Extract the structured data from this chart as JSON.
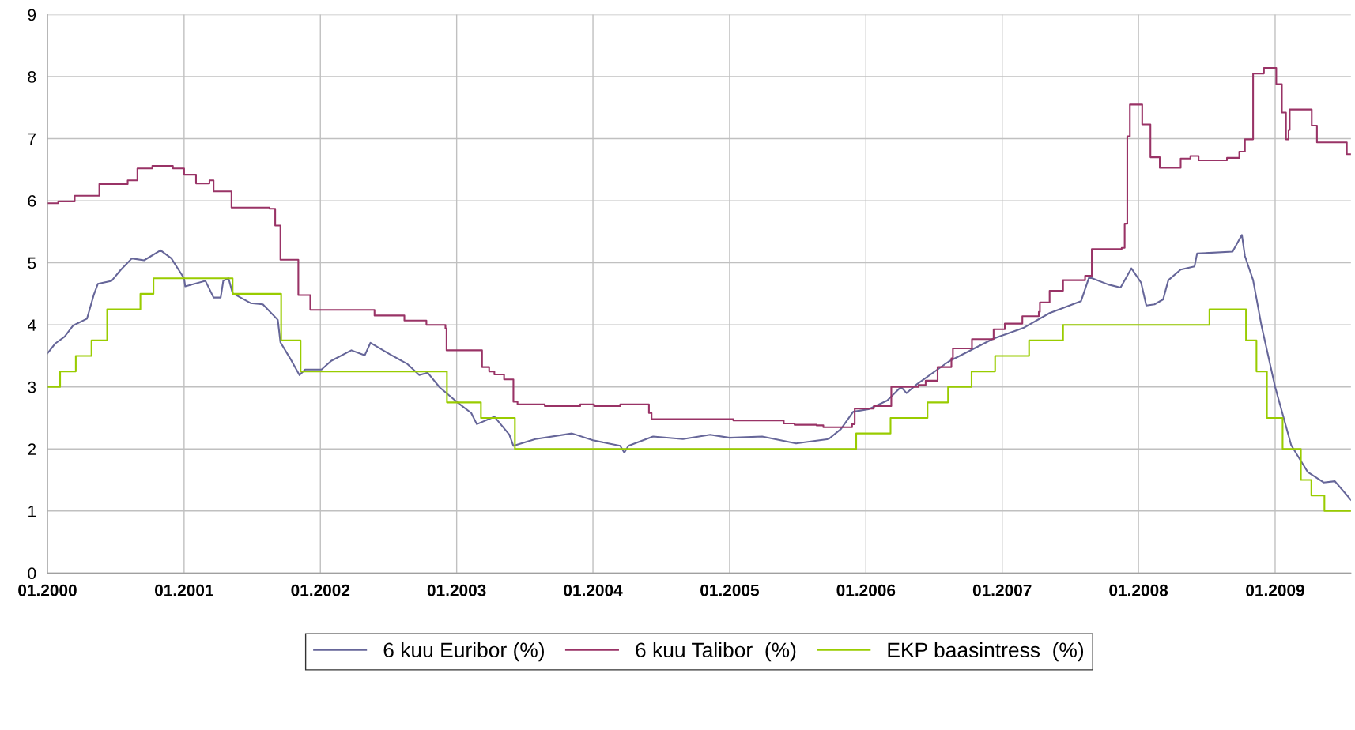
{
  "chart_data": {
    "type": "line",
    "xlim": [
      "2000-01-01",
      "2009-07-23"
    ],
    "ylim": [
      0,
      9
    ],
    "xticks": [
      {
        "value": "2000-01",
        "label": "01.2000"
      },
      {
        "value": "2001-01",
        "label": "01.2001"
      },
      {
        "value": "2002-01",
        "label": "01.2002"
      },
      {
        "value": "2003-01",
        "label": "01.2003"
      },
      {
        "value": "2004-01",
        "label": "01.2004"
      },
      {
        "value": "2005-01",
        "label": "01.2005"
      },
      {
        "value": "2006-01",
        "label": "01.2006"
      },
      {
        "value": "2007-01",
        "label": "01.2007"
      },
      {
        "value": "2008-01",
        "label": "01.2008"
      },
      {
        "value": "2009-01",
        "label": "01.2009"
      }
    ],
    "yticks": [
      0,
      1,
      2,
      3,
      4,
      5,
      6,
      7,
      8,
      9
    ],
    "grid": true,
    "legend": "bottom",
    "series": [
      {
        "name": "6 kuu Euribor (%)",
        "color": "#666699",
        "x": [
          "2000-01-01",
          "2000-01-22",
          "2000-02-16",
          "2000-03-10",
          "2000-04-16",
          "2000-05-04",
          "2000-05-15",
          "2000-06-21",
          "2000-07-16",
          "2000-08-14",
          "2000-09-16",
          "2000-10-30",
          "2000-11-28",
          "2001-01-01",
          "2001-01-04",
          "2001-02-27",
          "2001-03-21",
          "2001-04-09",
          "2001-04-16",
          "2001-04-30",
          "2001-05-11",
          "2001-06-28",
          "2001-07-31",
          "2001-09-09",
          "2001-09-16",
          "2001-10-12",
          "2001-11-06",
          "2001-11-21",
          "2002-01-04",
          "2002-01-30",
          "2002-03-25",
          "2002-04-30",
          "2002-05-15",
          "2002-07-05",
          "2002-08-22",
          "2002-09-23",
          "2002-10-15",
          "2002-11-17",
          "2003-01-01",
          "2003-02-09",
          "2003-02-24",
          "2003-04-12",
          "2003-05-22",
          "2003-06-02",
          "2003-07-31",
          "2003-11-06",
          "2004-01-01",
          "2004-03-14",
          "2004-03-25",
          "2004-04-05",
          "2004-06-10",
          "2004-08-29",
          "2004-11-10",
          "2005-01-01",
          "2005-03-29",
          "2005-06-28",
          "2005-09-23",
          "2005-10-26",
          "2005-11-28",
          "2006-01-08",
          "2006-02-27",
          "2006-04-05",
          "2006-04-20",
          "2006-05-19",
          "2006-08-11",
          "2006-12-09",
          "2007-02-27",
          "2007-05-08",
          "2007-07-31",
          "2007-08-22",
          "2007-10-12",
          "2007-11-14",
          "2007-12-13",
          "2008-01-08",
          "2008-01-22",
          "2008-02-13",
          "2008-03-07",
          "2008-03-21",
          "2008-04-23",
          "2008-05-30",
          "2008-06-06",
          "2008-09-09",
          "2008-10-04",
          "2008-10-12",
          "2008-11-03",
          "2008-11-25",
          "2009-01-01",
          "2009-02-13",
          "2009-03-29",
          "2009-05-11",
          "2009-06-10",
          "2009-07-23"
        ],
        "values": [
          3.54,
          3.7,
          3.81,
          3.99,
          4.1,
          4.48,
          4.66,
          4.71,
          4.89,
          5.07,
          5.04,
          5.2,
          5.07,
          4.75,
          4.62,
          4.71,
          4.44,
          4.44,
          4.71,
          4.75,
          4.51,
          4.35,
          4.33,
          4.08,
          3.72,
          3.46,
          3.19,
          3.28,
          3.28,
          3.42,
          3.59,
          3.51,
          3.71,
          3.53,
          3.37,
          3.19,
          3.23,
          2.99,
          2.76,
          2.58,
          2.4,
          2.52,
          2.23,
          2.05,
          2.16,
          2.25,
          2.14,
          2.05,
          1.94,
          2.05,
          2.2,
          2.16,
          2.23,
          2.18,
          2.2,
          2.09,
          2.16,
          2.32,
          2.6,
          2.64,
          2.78,
          3.0,
          2.9,
          3.05,
          3.41,
          3.78,
          3.95,
          4.19,
          4.38,
          4.77,
          4.65,
          4.6,
          4.91,
          4.68,
          4.31,
          4.33,
          4.41,
          4.72,
          4.89,
          4.94,
          5.15,
          5.18,
          5.45,
          5.11,
          4.72,
          4.0,
          3.0,
          2.06,
          1.63,
          1.46,
          1.48,
          1.18
        ]
      },
      {
        "name": "6 kuu Talibor  (%)",
        "color": "#993366",
        "type": "step",
        "x": [
          "2000-01-01",
          "2000-01-30",
          "2000-03-14",
          "2000-05-19",
          "2000-06-13",
          "2000-08-03",
          "2000-08-29",
          "2000-10-08",
          "2000-12-02",
          "2001-01-01",
          "2001-02-02",
          "2001-03-10",
          "2001-03-21",
          "2001-05-08",
          "2001-08-18",
          "2001-09-02",
          "2001-09-16",
          "2001-11-03",
          "2001-11-10",
          "2001-12-05",
          "2002-05-26",
          "2002-08-14",
          "2002-10-12",
          "2002-12-02",
          "2002-12-05",
          "2003-03-10",
          "2003-03-29",
          "2003-04-12",
          "2003-05-08",
          "2003-06-02",
          "2003-06-13",
          "2003-08-25",
          "2003-11-28",
          "2004-01-04",
          "2004-03-14",
          "2004-05-30",
          "2004-06-06",
          "2005-01-11",
          "2005-05-26",
          "2005-06-24",
          "2005-08-22",
          "2005-09-09",
          "2005-11-25",
          "2005-12-02",
          "2006-01-22",
          "2006-03-10",
          "2006-05-22",
          "2006-06-10",
          "2006-07-12",
          "2006-08-18",
          "2006-08-22",
          "2006-10-12",
          "2006-12-09",
          "2007-01-08",
          "2007-02-24",
          "2007-04-09",
          "2007-04-12",
          "2007-05-08",
          "2007-06-13",
          "2007-08-11",
          "2007-08-29",
          "2007-11-17",
          "2007-11-25",
          "2007-12-02",
          "2007-12-09",
          "2008-01-11",
          "2008-02-02",
          "2008-02-27",
          "2008-04-23",
          "2008-05-19",
          "2008-06-10",
          "2008-08-25",
          "2008-09-27",
          "2008-10-12",
          "2008-11-03",
          "2008-12-02",
          "2009-01-04",
          "2009-01-19",
          "2009-01-30",
          "2009-02-06",
          "2009-02-09",
          "2009-04-09",
          "2009-04-23",
          "2009-07-12",
          "2009-07-23"
        ],
        "values": [
          5.96,
          5.99,
          6.08,
          6.27,
          6.27,
          6.33,
          6.52,
          6.56,
          6.52,
          6.42,
          6.28,
          6.33,
          6.15,
          5.89,
          5.87,
          5.6,
          5.05,
          4.48,
          4.48,
          4.24,
          4.15,
          4.07,
          4.0,
          3.94,
          3.59,
          3.32,
          3.25,
          3.2,
          3.12,
          2.76,
          2.72,
          2.69,
          2.72,
          2.69,
          2.72,
          2.58,
          2.48,
          2.46,
          2.41,
          2.39,
          2.38,
          2.35,
          2.4,
          2.65,
          2.69,
          3.0,
          3.03,
          3.1,
          3.32,
          3.46,
          3.62,
          3.77,
          3.93,
          4.02,
          4.14,
          4.21,
          4.36,
          4.55,
          4.72,
          4.79,
          5.22,
          5.24,
          5.63,
          7.04,
          7.55,
          7.23,
          6.7,
          6.53,
          6.68,
          6.72,
          6.65,
          6.69,
          6.79,
          6.99,
          8.05,
          8.14,
          7.88,
          7.42,
          6.99,
          7.14,
          7.47,
          7.21,
          6.94,
          6.75,
          6.75
        ]
      },
      {
        "name": "EKP baasintress  (%)",
        "color": "#99cc00",
        "type": "step",
        "x": [
          "2000-01-01",
          "2000-02-04",
          "2000-03-17",
          "2000-04-28",
          "2000-06-09",
          "2000-09-06",
          "2000-10-11",
          "2001-05-11",
          "2001-09-18",
          "2001-11-09",
          "2002-12-06",
          "2003-03-07",
          "2003-06-06",
          "2005-12-06",
          "2006-03-08",
          "2006-06-15",
          "2006-08-09",
          "2006-10-11",
          "2006-12-13",
          "2007-03-14",
          "2007-06-13",
          "2008-07-09",
          "2008-10-15",
          "2008-11-12",
          "2008-12-10",
          "2009-01-21",
          "2009-03-11",
          "2009-04-08",
          "2009-05-13",
          "2009-07-23"
        ],
        "values": [
          3.0,
          3.25,
          3.5,
          3.75,
          4.25,
          4.5,
          4.75,
          4.5,
          3.75,
          3.25,
          2.75,
          2.5,
          2.0,
          2.25,
          2.5,
          2.75,
          3.0,
          3.25,
          3.5,
          3.75,
          4.0,
          4.25,
          3.75,
          3.25,
          2.5,
          2.0,
          1.5,
          1.25,
          1.0,
          1.0
        ]
      }
    ]
  }
}
